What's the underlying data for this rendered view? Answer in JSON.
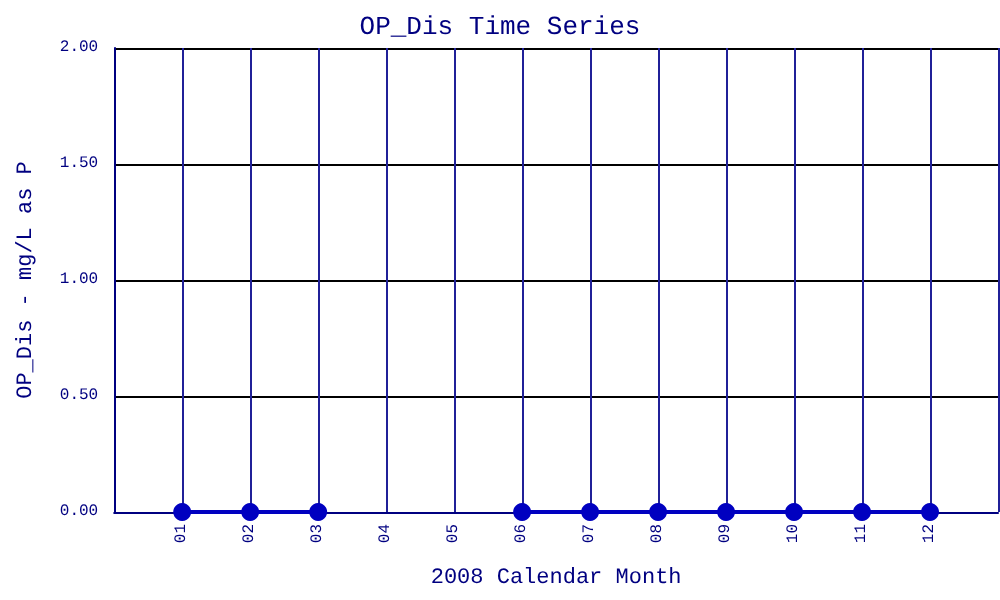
{
  "chart_data": {
    "type": "line",
    "title": "OP_Dis Time Series",
    "xlabel": "2008 Calendar Month",
    "ylabel": "OP_Dis - mg/L as P",
    "categories": [
      "01",
      "02",
      "03",
      "04",
      "05",
      "06",
      "07",
      "08",
      "09",
      "10",
      "11",
      "12"
    ],
    "series": [
      {
        "color": "#0000c0",
        "values": [
          0,
          0,
          0,
          null,
          null,
          0,
          0,
          0,
          0,
          0,
          0,
          0
        ]
      }
    ],
    "ylim": [
      0,
      2
    ],
    "yticks": [
      {
        "value": 0,
        "label": "0.00"
      },
      {
        "value": 0.5,
        "label": "0.50"
      },
      {
        "value": 1,
        "label": "1.00"
      },
      {
        "value": 1.5,
        "label": "1.50"
      },
      {
        "value": 2,
        "label": "2.00"
      }
    ],
    "grid": true,
    "marker": "circle",
    "line_style": "solid"
  }
}
